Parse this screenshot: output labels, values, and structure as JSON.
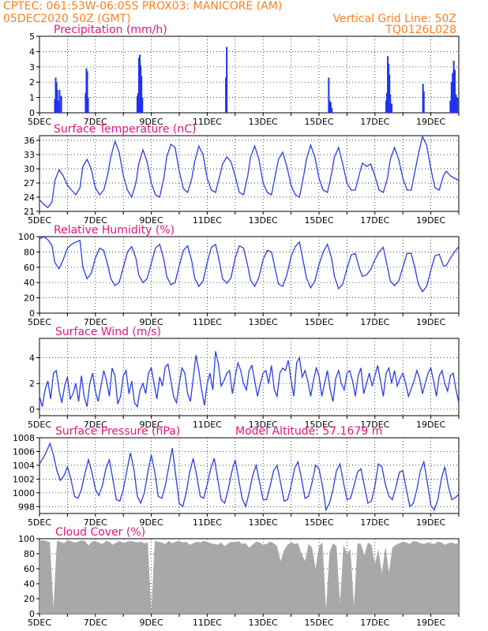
{
  "header": {
    "line1_left": "CPTEC:   061:53W-06:05S   PROX03: MANICORE (AM)",
    "line2_left": "05DEC2020 50Z (GMT)",
    "line2_right": "Vertical Grid Line: 50Z",
    "line3_right": "TQ0126L028"
  },
  "colors": {
    "header_text": "#ff7f1e",
    "title_text": "#e6157a",
    "series_line": "#2b3fe6",
    "precip_bar": "#1f32f0",
    "cloud_fill": "#a8a8a8",
    "grid": "#000000"
  },
  "x_tick_labels": [
    "5DEC",
    "7DEC",
    "9DEC",
    "11DEC",
    "13DEC",
    "15DEC",
    "17DEC",
    "19DEC"
  ],
  "chart_data": [
    {
      "type": "bar",
      "title": "Precipitation (mm/h)",
      "ylim": [
        0,
        5
      ],
      "yticks": [
        0,
        1,
        2,
        3,
        4,
        5
      ],
      "x_days": [
        0.55,
        0.58,
        0.61,
        0.64,
        0.67,
        0.72,
        0.78,
        1.65,
        1.68,
        1.71,
        1.74,
        3.5,
        3.53,
        3.56,
        3.59,
        3.62,
        3.65,
        3.68,
        6.67,
        6.7,
        10.35,
        10.38,
        10.42,
        10.46,
        12.4,
        12.43,
        12.46,
        12.49,
        12.52,
        12.55,
        12.6,
        13.72,
        13.75,
        14.7,
        14.74,
        14.78,
        14.82,
        14.86,
        14.9,
        14.95
      ],
      "values": [
        0.9,
        2.3,
        2.0,
        1.5,
        0.8,
        1.5,
        1.1,
        1.3,
        2.9,
        2.7,
        1.0,
        1.1,
        1.3,
        3.6,
        3.8,
        3.1,
        2.4,
        1.0,
        2.3,
        4.3,
        2.3,
        0.8,
        0.7,
        0.3,
        0.8,
        1.3,
        3.7,
        3.2,
        2.5,
        1.2,
        0.6,
        1.9,
        1.4,
        0.8,
        2.0,
        2.6,
        3.4,
        2.8,
        1.2,
        1.0
      ]
    },
    {
      "type": "line",
      "title": "Surface Temperature (nC)",
      "ylim": [
        21,
        37
      ],
      "yticks": [
        21,
        24,
        27,
        30,
        33,
        36
      ],
      "x": [
        0,
        0.15,
        0.3,
        0.45,
        0.55,
        0.7,
        0.85,
        1.0,
        1.15,
        1.3,
        1.45,
        1.55,
        1.7,
        1.85,
        2.0,
        2.15,
        2.3,
        2.45,
        2.55,
        2.7,
        2.85,
        3.0,
        3.15,
        3.3,
        3.45,
        3.55,
        3.7,
        3.85,
        4.0,
        4.15,
        4.3,
        4.45,
        4.55,
        4.7,
        4.85,
        5.0,
        5.15,
        5.3,
        5.45,
        5.55,
        5.7,
        5.85,
        6.0,
        6.15,
        6.3,
        6.45,
        6.55,
        6.7,
        6.85,
        7.0,
        7.15,
        7.3,
        7.45,
        7.55,
        7.7,
        7.85,
        8.0,
        8.15,
        8.3,
        8.45,
        8.55,
        8.7,
        8.85,
        9.0,
        9.15,
        9.3,
        9.45,
        9.55,
        9.7,
        9.85,
        10.0,
        10.15,
        10.3,
        10.45,
        10.55,
        10.7,
        10.85,
        11.0,
        11.15,
        11.3,
        11.45,
        11.55,
        11.7,
        11.85,
        12.0,
        12.15,
        12.3,
        12.45,
        12.55,
        12.7,
        12.85,
        13.0,
        13.15,
        13.3,
        13.45,
        13.55,
        13.7,
        13.85,
        14.0,
        14.15,
        14.3,
        14.45,
        14.55,
        14.7,
        14.85,
        15.0
      ],
      "y": [
        23.5,
        22.5,
        21.8,
        23.0,
        27.5,
        29.8,
        28.5,
        26.5,
        25.5,
        24.5,
        26.0,
        30.5,
        32.0,
        30.0,
        26.0,
        24.5,
        25.5,
        29.0,
        32.5,
        35.8,
        33.5,
        28.5,
        25.5,
        24.0,
        27.0,
        31.0,
        34.0,
        31.5,
        27.0,
        24.5,
        24.0,
        28.0,
        32.5,
        35.2,
        34.5,
        29.5,
        25.8,
        25.0,
        28.0,
        31.5,
        34.8,
        33.0,
        28.0,
        25.5,
        25.0,
        28.5,
        31.0,
        32.5,
        31.5,
        28.5,
        25.0,
        24.5,
        28.5,
        32.5,
        34.8,
        32.0,
        27.0,
        25.0,
        24.5,
        29.0,
        32.0,
        33.5,
        30.5,
        26.5,
        24.5,
        24.0,
        28.5,
        32.0,
        35.0,
        32.5,
        28.0,
        25.5,
        25.0,
        29.0,
        32.5,
        34.5,
        31.0,
        27.0,
        25.5,
        25.5,
        29.0,
        31.2,
        30.5,
        31.0,
        28.5,
        25.5,
        25.0,
        28.0,
        32.0,
        34.5,
        32.0,
        28.0,
        25.5,
        25.5,
        30.0,
        33.0,
        36.8,
        35.0,
        30.0,
        26.0,
        25.5,
        28.5,
        29.5,
        28.5,
        28.0,
        27.5
      ]
    },
    {
      "type": "line",
      "title": "Relative Humidity (%)",
      "ylim": [
        0,
        100
      ],
      "yticks": [
        0,
        20,
        40,
        60,
        80,
        100
      ],
      "x": [
        0,
        0.15,
        0.3,
        0.45,
        0.55,
        0.7,
        0.85,
        1.0,
        1.15,
        1.3,
        1.45,
        1.55,
        1.7,
        1.85,
        2.0,
        2.15,
        2.3,
        2.45,
        2.55,
        2.7,
        2.85,
        3.0,
        3.15,
        3.3,
        3.45,
        3.55,
        3.7,
        3.85,
        4.0,
        4.15,
        4.3,
        4.45,
        4.55,
        4.7,
        4.85,
        5.0,
        5.15,
        5.3,
        5.45,
        5.55,
        5.7,
        5.85,
        6.0,
        6.15,
        6.3,
        6.45,
        6.55,
        6.7,
        6.85,
        7.0,
        7.15,
        7.3,
        7.45,
        7.55,
        7.7,
        7.85,
        8.0,
        8.15,
        8.3,
        8.45,
        8.55,
        8.7,
        8.85,
        9.0,
        9.15,
        9.3,
        9.45,
        9.55,
        9.7,
        9.85,
        10.0,
        10.15,
        10.3,
        10.45,
        10.55,
        10.7,
        10.85,
        11.0,
        11.15,
        11.3,
        11.45,
        11.55,
        11.7,
        11.85,
        12.0,
        12.15,
        12.3,
        12.45,
        12.55,
        12.7,
        12.85,
        13.0,
        13.15,
        13.3,
        13.45,
        13.55,
        13.7,
        13.85,
        14.0,
        14.15,
        14.3,
        14.45,
        14.55,
        14.7,
        14.85,
        15.0
      ],
      "y": [
        97,
        100,
        96,
        88,
        66,
        58,
        70,
        85,
        90,
        93,
        95,
        60,
        45,
        52,
        72,
        85,
        82,
        62,
        45,
        36,
        40,
        60,
        80,
        87,
        72,
        50,
        40,
        45,
        65,
        85,
        90,
        70,
        48,
        37,
        40,
        62,
        82,
        88,
        68,
        46,
        35,
        42,
        66,
        86,
        90,
        65,
        45,
        39,
        46,
        72,
        88,
        85,
        62,
        43,
        35,
        47,
        70,
        82,
        80,
        55,
        38,
        35,
        50,
        74,
        87,
        93,
        65,
        46,
        33,
        42,
        63,
        80,
        90,
        72,
        48,
        32,
        38,
        58,
        76,
        78,
        58,
        48,
        50,
        57,
        70,
        80,
        86,
        60,
        42,
        36,
        42,
        60,
        78,
        78,
        56,
        38,
        28,
        35,
        56,
        75,
        77,
        62,
        62,
        72,
        80,
        87
      ]
    },
    {
      "type": "line",
      "title": "Surface Wind (m/s)",
      "ylim": [
        -0.5,
        5.5
      ],
      "yticks": [
        0,
        2,
        4
      ],
      "x": [
        0,
        0.1,
        0.2,
        0.3,
        0.4,
        0.5,
        0.6,
        0.7,
        0.8,
        0.9,
        1.0,
        1.1,
        1.2,
        1.3,
        1.4,
        1.5,
        1.6,
        1.7,
        1.8,
        1.9,
        2.0,
        2.1,
        2.2,
        2.3,
        2.4,
        2.5,
        2.6,
        2.7,
        2.8,
        2.9,
        3.0,
        3.1,
        3.2,
        3.3,
        3.4,
        3.5,
        3.6,
        3.7,
        3.8,
        3.9,
        4.0,
        4.1,
        4.2,
        4.3,
        4.4,
        4.5,
        4.6,
        4.7,
        4.8,
        4.9,
        5.0,
        5.1,
        5.2,
        5.3,
        5.4,
        5.5,
        5.6,
        5.7,
        5.8,
        5.9,
        6.0,
        6.1,
        6.2,
        6.3,
        6.4,
        6.5,
        6.6,
        6.7,
        6.8,
        6.9,
        7.0,
        7.1,
        7.2,
        7.3,
        7.4,
        7.5,
        7.6,
        7.7,
        7.8,
        7.9,
        8.0,
        8.1,
        8.2,
        8.3,
        8.4,
        8.5,
        8.6,
        8.7,
        8.8,
        8.9,
        9.0,
        9.1,
        9.2,
        9.3,
        9.4,
        9.5,
        9.6,
        9.7,
        9.8,
        9.9,
        10.0,
        10.1,
        10.2,
        10.3,
        10.4,
        10.5,
        10.6,
        10.7,
        10.8,
        10.9,
        11.0,
        11.1,
        11.2,
        11.3,
        11.4,
        11.5,
        11.6,
        11.7,
        11.8,
        11.9,
        12.0,
        12.1,
        12.2,
        12.3,
        12.4,
        12.5,
        12.6,
        12.7,
        12.8,
        12.9,
        13.0,
        13.1,
        13.2,
        13.3,
        13.4,
        13.5,
        13.6,
        13.7,
        13.8,
        13.9,
        14.0,
        14.1,
        14.2,
        14.3,
        14.4,
        14.5,
        14.6,
        14.7,
        14.8,
        14.9,
        15.0
      ],
      "y": [
        1.0,
        0.2,
        1.5,
        2.2,
        0.8,
        2.8,
        3.0,
        1.5,
        0.5,
        1.8,
        2.5,
        0.8,
        1.2,
        2.0,
        0.6,
        2.6,
        1.0,
        0.2,
        2.0,
        2.8,
        1.4,
        0.6,
        1.8,
        3.0,
        2.2,
        1.0,
        3.2,
        2.6,
        0.4,
        1.0,
        2.6,
        3.0,
        1.2,
        2.2,
        0.5,
        0.2,
        1.5,
        2.0,
        1.2,
        2.8,
        3.2,
        2.0,
        0.8,
        2.5,
        1.8,
        3.3,
        3.5,
        2.2,
        1.0,
        0.5,
        2.0,
        3.2,
        2.8,
        1.2,
        0.6,
        2.4,
        4.2,
        3.0,
        1.5,
        0.3,
        2.0,
        2.8,
        1.5,
        4.5,
        3.5,
        1.8,
        2.2,
        2.8,
        3.0,
        1.2,
        2.5,
        3.6,
        3.0,
        2.0,
        1.5,
        3.0,
        3.4,
        2.2,
        1.0,
        2.0,
        2.8,
        3.0,
        2.0,
        3.4,
        1.5,
        1.0,
        2.8,
        3.2,
        3.0,
        3.8,
        2.2,
        1.0,
        3.6,
        4.0,
        2.5,
        3.0,
        2.2,
        1.0,
        2.2,
        3.2,
        2.6,
        1.0,
        2.0,
        3.0,
        1.5,
        0.6,
        2.4,
        3.0,
        2.0,
        1.5,
        2.8,
        3.0,
        2.2,
        1.0,
        2.6,
        3.2,
        1.2,
        2.0,
        2.8,
        1.8,
        2.6,
        3.4,
        2.2,
        1.0,
        2.8,
        3.2,
        2.0,
        3.0,
        1.8,
        2.4,
        2.8,
        2.0,
        1.0,
        1.6,
        2.2,
        3.0,
        2.4,
        1.2,
        2.0,
        2.8,
        3.2,
        2.2,
        1.0,
        2.6,
        3.0,
        2.0,
        1.4,
        2.6,
        2.8,
        1.5,
        0.5
      ]
    },
    {
      "type": "line",
      "title": "Surface Pressure (hPa)",
      "annotation": "Model Altitude: 57.1679 m",
      "ylim": [
        997,
        1008
      ],
      "yticks": [
        998,
        1000,
        1002,
        1004,
        1006,
        1008
      ],
      "x": [
        0,
        0.125,
        0.25,
        0.375,
        0.5,
        0.625,
        0.75,
        0.875,
        1.0,
        1.125,
        1.25,
        1.375,
        1.5,
        1.625,
        1.75,
        1.875,
        2.0,
        2.125,
        2.25,
        2.375,
        2.5,
        2.625,
        2.75,
        2.875,
        3.0,
        3.125,
        3.25,
        3.375,
        3.5,
        3.625,
        3.75,
        3.875,
        4.0,
        4.125,
        4.25,
        4.375,
        4.5,
        4.625,
        4.75,
        4.875,
        5.0,
        5.125,
        5.25,
        5.375,
        5.5,
        5.625,
        5.75,
        5.875,
        6.0,
        6.125,
        6.25,
        6.375,
        6.5,
        6.625,
        6.75,
        6.875,
        7.0,
        7.125,
        7.25,
        7.375,
        7.5,
        7.625,
        7.75,
        7.875,
        8.0,
        8.125,
        8.25,
        8.375,
        8.5,
        8.625,
        8.75,
        8.875,
        9.0,
        9.125,
        9.25,
        9.375,
        9.5,
        9.625,
        9.75,
        9.875,
        10.0,
        10.125,
        10.25,
        10.375,
        10.5,
        10.625,
        10.75,
        10.875,
        11.0,
        11.125,
        11.25,
        11.375,
        11.5,
        11.625,
        11.75,
        11.875,
        12.0,
        12.125,
        12.25,
        12.375,
        12.5,
        12.625,
        12.75,
        12.875,
        13.0,
        13.125,
        13.25,
        13.375,
        13.5,
        13.625,
        13.75,
        13.875,
        14.0,
        14.125,
        14.25,
        14.375,
        14.5,
        14.625,
        14.75,
        14.875,
        15.0
      ],
      "y": [
        1004.2,
        1005.0,
        1006.0,
        1007.2,
        1005.5,
        1003.2,
        1001.8,
        1002.5,
        1003.8,
        1002.0,
        999.5,
        999.2,
        1000.5,
        1002.8,
        1004.8,
        1003.0,
        1000.5,
        999.6,
        1001.0,
        1003.5,
        1004.8,
        1002.0,
        999.0,
        998.8,
        1000.5,
        1003.2,
        1005.8,
        1003.5,
        999.5,
        998.5,
        1000.0,
        1003.0,
        1005.5,
        1003.0,
        999.5,
        999.2,
        1001.0,
        1003.8,
        1006.5,
        1002.5,
        998.5,
        998.0,
        1000.0,
        1003.0,
        1005.0,
        1002.5,
        999.5,
        999.2,
        1001.2,
        1003.5,
        1005.0,
        1002.0,
        999.0,
        998.5,
        1000.5,
        1003.0,
        1004.8,
        1002.0,
        999.2,
        998.0,
        1000.0,
        1002.5,
        1004.0,
        1001.5,
        999.0,
        999.0,
        1001.0,
        1003.2,
        1004.0,
        1001.5,
        998.8,
        999.0,
        1001.0,
        1003.5,
        1004.5,
        1002.0,
        999.2,
        999.5,
        1001.5,
        1004.0,
        1003.5,
        1001.0,
        997.5,
        998.5,
        1000.5,
        1003.2,
        1004.2,
        1001.5,
        999.0,
        999.2,
        1001.0,
        1003.0,
        1003.5,
        1001.0,
        998.5,
        998.8,
        1001.0,
        1004.2,
        1003.8,
        1001.2,
        999.5,
        999.0,
        1000.8,
        1003.0,
        1003.2,
        1000.5,
        998.0,
        998.5,
        1000.5,
        1003.2,
        1004.5,
        1001.5,
        998.2,
        997.5,
        999.0,
        1002.0,
        1003.8,
        1001.0,
        999.0,
        999.3,
        999.8
      ]
    },
    {
      "type": "area",
      "title": "Cloud Cover (%)",
      "ylim": [
        0,
        100
      ],
      "yticks": [
        0,
        20,
        40,
        60,
        80,
        100
      ],
      "x": [
        0,
        0.125,
        0.25,
        0.375,
        0.5,
        0.625,
        0.75,
        0.875,
        1.0,
        1.125,
        1.25,
        1.375,
        1.5,
        1.625,
        1.75,
        1.875,
        2.0,
        2.125,
        2.25,
        2.375,
        2.5,
        2.625,
        2.75,
        2.875,
        3.0,
        3.125,
        3.25,
        3.375,
        3.5,
        3.625,
        3.75,
        3.875,
        4.0,
        4.125,
        4.25,
        4.375,
        4.5,
        4.625,
        4.75,
        4.875,
        5.0,
        5.125,
        5.25,
        5.375,
        5.5,
        5.625,
        5.75,
        5.875,
        6.0,
        6.125,
        6.25,
        6.375,
        6.5,
        6.625,
        6.75,
        6.875,
        7.0,
        7.125,
        7.25,
        7.375,
        7.5,
        7.625,
        7.75,
        7.875,
        8.0,
        8.125,
        8.25,
        8.375,
        8.5,
        8.625,
        8.75,
        8.875,
        9.0,
        9.125,
        9.25,
        9.375,
        9.5,
        9.625,
        9.75,
        9.875,
        10.0,
        10.125,
        10.25,
        10.375,
        10.5,
        10.625,
        10.75,
        10.875,
        11.0,
        11.125,
        11.25,
        11.375,
        11.5,
        11.625,
        11.75,
        11.875,
        12.0,
        12.125,
        12.25,
        12.375,
        12.5,
        12.625,
        12.75,
        12.875,
        13.0,
        13.125,
        13.25,
        13.375,
        13.5,
        13.625,
        13.75,
        13.875,
        14.0,
        14.125,
        14.25,
        14.375,
        14.5,
        14.625,
        14.75,
        14.875,
        15.0
      ],
      "y": [
        97,
        98,
        97,
        95,
        8,
        97,
        96,
        94,
        98,
        97,
        95,
        96,
        98,
        97,
        91,
        96,
        97,
        95,
        93,
        97,
        96,
        92,
        95,
        97,
        94,
        96,
        97,
        96,
        95,
        96,
        94,
        95,
        2,
        97,
        96,
        95,
        93,
        97,
        94,
        96,
        97,
        95,
        96,
        92,
        94,
        96,
        95,
        97,
        96,
        94,
        93,
        92,
        95,
        90,
        94,
        96,
        95,
        97,
        93,
        94,
        88,
        92,
        96,
        95,
        92,
        93,
        96,
        94,
        90,
        70,
        85,
        92,
        95,
        93,
        94,
        80,
        70,
        93,
        88,
        60,
        90,
        95,
        6,
        82,
        94,
        90,
        14,
        92,
        80,
        86,
        10,
        94,
        93,
        78,
        95,
        92,
        66,
        86,
        54,
        90,
        55,
        88,
        92,
        94,
        96,
        95,
        93,
        97,
        96,
        94,
        93,
        95,
        94,
        93,
        96,
        95,
        92,
        94,
        95,
        93,
        94
      ]
    }
  ]
}
